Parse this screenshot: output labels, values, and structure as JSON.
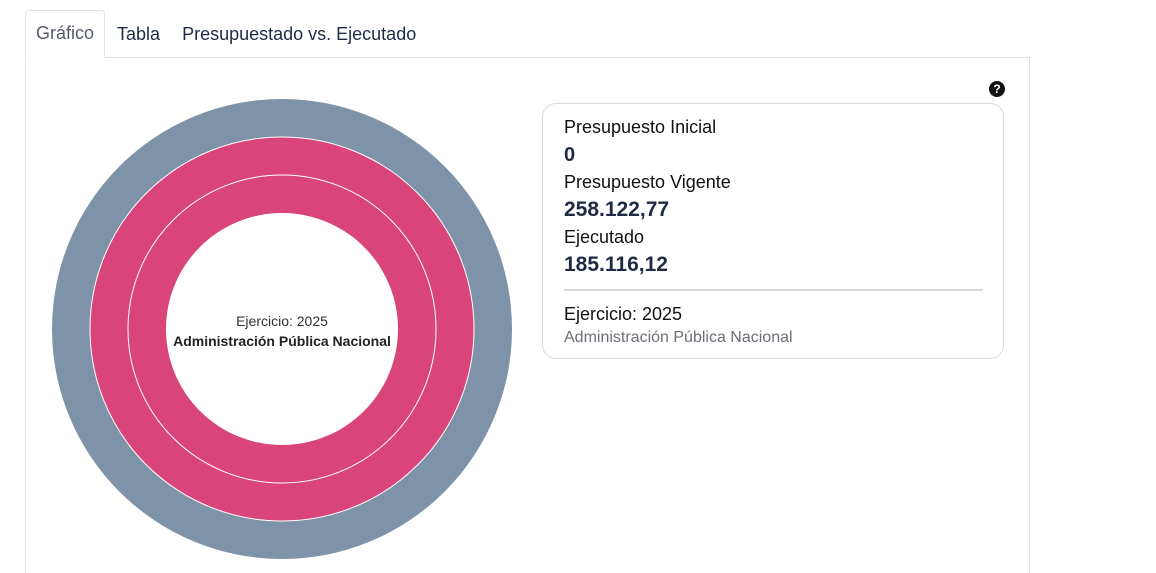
{
  "tabs": [
    {
      "label": "Gráfico",
      "active": true
    },
    {
      "label": "Tabla",
      "active": false
    },
    {
      "label": "Presupuestado vs. Ejecutado",
      "active": false
    }
  ],
  "chart": {
    "center_year": "Ejercicio: 2025",
    "center_entity": "Administración Pública Nacional",
    "rings": [
      {
        "color": "#7f93a8"
      },
      {
        "color": "#d9457a"
      },
      {
        "color": "#d9457a"
      }
    ]
  },
  "help_icon": {
    "glyph": "?",
    "name": "help-icon"
  },
  "info": {
    "initial_label": "Presupuesto Inicial",
    "initial_value": "0",
    "current_label": "Presupuesto Vigente",
    "current_value": "258.122,77",
    "executed_label": "Ejecutado",
    "executed_value": "185.116,12",
    "year": "Ejercicio: 2025",
    "entity": "Administración Pública Nacional"
  },
  "colors": {
    "outer_ring": "#7f93a8",
    "inner_rings": "#d9457a",
    "value_text": "#1f2a44"
  }
}
